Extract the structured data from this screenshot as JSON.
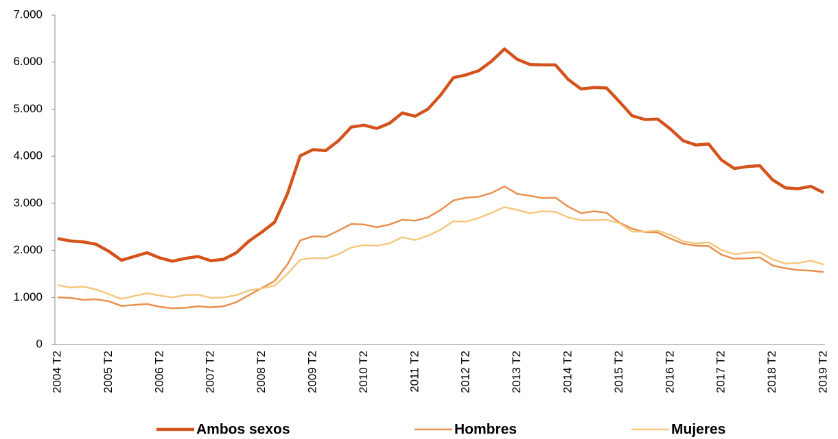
{
  "chart_data": {
    "type": "line",
    "categories": [
      "2004 T2",
      null,
      null,
      null,
      "2005 T2",
      null,
      null,
      null,
      "2006 T2",
      null,
      null,
      null,
      "2007 T2",
      null,
      null,
      null,
      "2008 T2",
      null,
      null,
      null,
      "2009 T2",
      null,
      null,
      null,
      "2010 T2",
      null,
      null,
      null,
      "2011 T2",
      null,
      null,
      null,
      "2012 T2",
      null,
      null,
      null,
      "2013 T2",
      null,
      null,
      null,
      "2014 T2",
      null,
      null,
      null,
      "2015 T2",
      null,
      null,
      null,
      "2016 T2",
      null,
      null,
      null,
      "2017 T2",
      null,
      null,
      null,
      "2018 T2",
      null,
      null,
      null,
      "2019 T2"
    ],
    "series": [
      {
        "name": "Ambos sexos",
        "color": "#d4531c",
        "values": [
          2250,
          2200,
          2180,
          2130,
          1980,
          1790,
          1870,
          1950,
          1840,
          1770,
          1830,
          1870,
          1780,
          1810,
          1950,
          2200,
          2390,
          2600,
          3200,
          4010,
          4140,
          4120,
          4330,
          4620,
          4660,
          4590,
          4700,
          4920,
          4850,
          5000,
          5300,
          5670,
          5730,
          5820,
          6020,
          6280,
          6060,
          5950,
          5940,
          5940,
          5630,
          5430,
          5460,
          5450,
          5160,
          4860,
          4780,
          4790,
          4580,
          4330,
          4240,
          4260,
          3920,
          3740,
          3780,
          3800,
          3500,
          3330,
          3310,
          3360,
          3230
        ]
      },
      {
        "name": "Hombres",
        "color": "#e8904e",
        "values": [
          1000,
          990,
          950,
          960,
          920,
          820,
          840,
          860,
          800,
          770,
          780,
          810,
          790,
          810,
          900,
          1050,
          1200,
          1350,
          1700,
          2210,
          2300,
          2290,
          2420,
          2560,
          2550,
          2490,
          2550,
          2650,
          2630,
          2700,
          2860,
          3060,
          3120,
          3140,
          3220,
          3360,
          3200,
          3160,
          3110,
          3120,
          2930,
          2790,
          2830,
          2800,
          2590,
          2460,
          2390,
          2380,
          2250,
          2140,
          2100,
          2090,
          1910,
          1820,
          1830,
          1850,
          1680,
          1620,
          1580,
          1570,
          1540
        ]
      },
      {
        "name": "Mujeres",
        "color": "#f5c77e",
        "values": [
          1260,
          1210,
          1230,
          1170,
          1070,
          970,
          1030,
          1090,
          1040,
          1000,
          1050,
          1060,
          990,
          1000,
          1050,
          1150,
          1190,
          1250,
          1500,
          1800,
          1840,
          1830,
          1920,
          2060,
          2110,
          2100,
          2150,
          2280,
          2220,
          2310,
          2440,
          2620,
          2610,
          2690,
          2800,
          2920,
          2860,
          2790,
          2830,
          2820,
          2700,
          2640,
          2640,
          2650,
          2580,
          2400,
          2400,
          2420,
          2330,
          2190,
          2150,
          2170,
          2010,
          1920,
          1950,
          1960,
          1810,
          1720,
          1730,
          1780,
          1700
        ]
      }
    ],
    "ylim": [
      0,
      7000
    ],
    "yticks": [
      0,
      {
        "value": 1000,
        "label": "1.000"
      },
      {
        "value": 2000,
        "label": "2.000"
      },
      {
        "value": 3000,
        "label": "3.000"
      },
      {
        "value": 4000,
        "label": "4.000"
      },
      {
        "value": 5000,
        "label": "5.000"
      },
      {
        "value": 6000,
        "label": "6.000"
      },
      {
        "value": 7000,
        "label": "7.000"
      }
    ],
    "grid": false,
    "legend": "bottom"
  }
}
